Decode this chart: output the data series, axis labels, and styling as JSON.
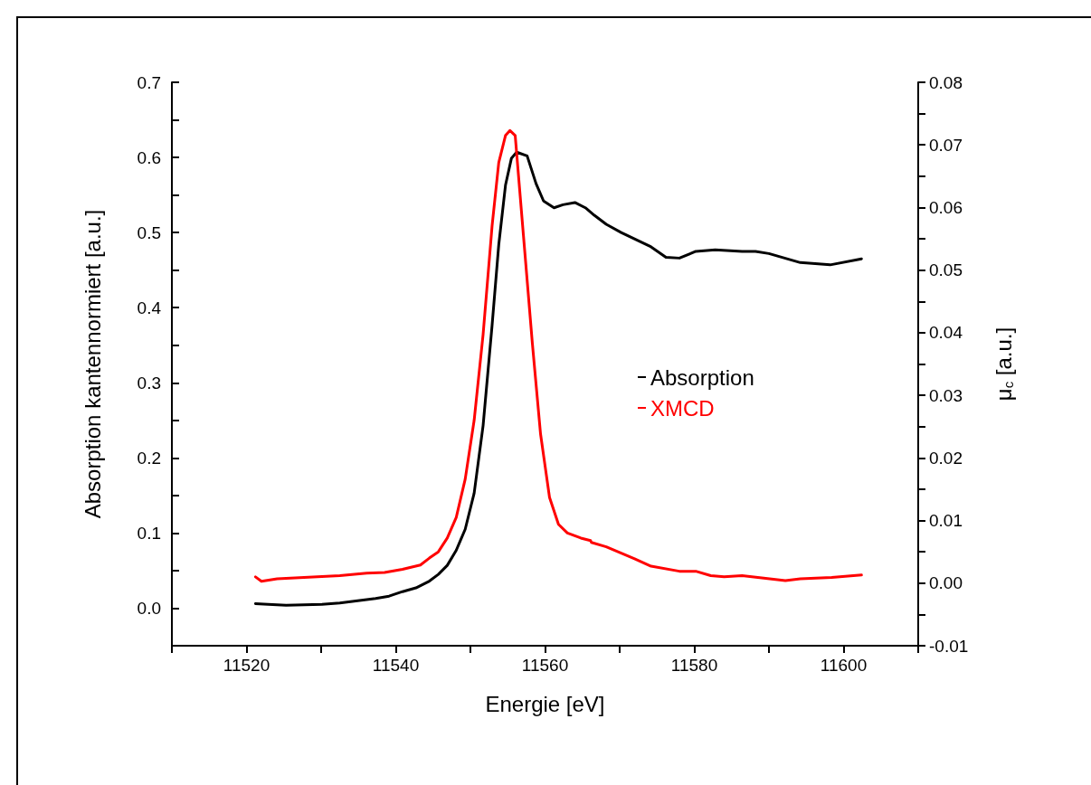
{
  "chart_data": {
    "type": "line",
    "xlabel": "Energie [eV]",
    "ylabel": "Absorption kantennormiert [a.u.]",
    "y2label": "μ$_{c}$ [a.u.]",
    "series": [
      {
        "name": "Absorption",
        "color": "#000000",
        "x": [
          11521.2,
          11522.9,
          11525.3,
          11530.1,
          11532.5,
          11534.9,
          11537.3,
          11539.1,
          11540.9,
          11542.7,
          11544.5,
          11545.7,
          11546.9,
          11548.1,
          11549.3,
          11550.5,
          11551.7,
          11552.9,
          11553.8,
          11554.7,
          11555.5,
          11556.2,
          11557.6,
          11558.8,
          11559.8,
          11561.2,
          11562.4,
          11564.0,
          11565.4,
          11566.6,
          11568.2,
          11570.2,
          11574.2,
          11576.2,
          11578.0,
          11580.2,
          11582.8,
          11586.4,
          11588.2,
          11590.0,
          11594.2,
          11598.2,
          11602.4
        ],
        "values": [
          0.006,
          0.005,
          0.004,
          0.005,
          0.007,
          0.01,
          0.013,
          0.016,
          0.022,
          0.027,
          0.036,
          0.045,
          0.057,
          0.077,
          0.105,
          0.153,
          0.243,
          0.376,
          0.484,
          0.563,
          0.599,
          0.607,
          0.602,
          0.565,
          0.542,
          0.533,
          0.537,
          0.54,
          0.533,
          0.523,
          0.511,
          0.5,
          0.481,
          0.467,
          0.466,
          0.475,
          0.477,
          0.475,
          0.475,
          0.472,
          0.46,
          0.457,
          0.465
        ]
      },
      {
        "name": "XMCD",
        "color": "#ff0000",
        "axis": "y2",
        "x": [
          11521.2,
          11522.0,
          11524.1,
          11527.7,
          11532.5,
          11536.1,
          11538.5,
          11540.9,
          11543.3,
          11544.5,
          11545.7,
          11546.9,
          11548.1,
          11549.3,
          11550.5,
          11551.7,
          11552.9,
          11553.8,
          11554.7,
          11555.3,
          11556.0,
          11557.1,
          11558.3,
          11559.4,
          11560.6,
          11561.8,
          11563.0,
          11564.8,
          11566.1,
          11566.2,
          11568.2,
          11572.0,
          11574.2,
          11578.0,
          11580.2,
          11582.2,
          11584.0,
          11586.4,
          11592.2,
          11594.2,
          11598.4,
          11602.4
        ],
        "values": [
          0.001,
          0.0003,
          0.0007,
          0.0009,
          0.0012,
          0.0016,
          0.0017,
          0.0022,
          0.0029,
          0.004,
          0.005,
          0.0072,
          0.0105,
          0.0166,
          0.026,
          0.0397,
          0.057,
          0.0672,
          0.0715,
          0.0723,
          0.0715,
          0.0556,
          0.0383,
          0.0238,
          0.0137,
          0.0094,
          0.008,
          0.0072,
          0.0068,
          0.0065,
          0.0058,
          0.0039,
          0.0027,
          0.0019,
          0.0019,
          0.0012,
          0.001,
          0.0012,
          0.0004,
          0.0007,
          0.0009,
          0.0013
        ]
      }
    ],
    "xlim": [
      11510,
      11610
    ],
    "xticks": [
      {
        "value": 11510,
        "label": null
      },
      11520,
      {
        "value": 11530,
        "label": null
      },
      11540,
      {
        "value": 11550,
        "label": null
      },
      11560,
      {
        "value": 11570,
        "label": null
      },
      11580,
      {
        "value": 11590,
        "label": null
      },
      11600,
      {
        "value": 11610,
        "label": null
      }
    ],
    "ylim": [
      -0.05,
      0.7
    ],
    "yticks": [
      {
        "value": -0.05,
        "label": null
      },
      {
        "value": 0,
        "label": "0.0"
      },
      {
        "value": 0.05,
        "label": null
      },
      0.1,
      {
        "value": 0.15,
        "label": null
      },
      0.2,
      {
        "value": 0.25,
        "label": null
      },
      0.3,
      {
        "value": 0.35,
        "label": null
      },
      0.4,
      {
        "value": 0.45,
        "label": null
      },
      0.5,
      {
        "value": 0.55,
        "label": null
      },
      0.6,
      {
        "value": 0.65,
        "label": null
      },
      0.7
    ],
    "y2lim": [
      -0.01,
      0.08
    ],
    "y2ticks": [
      {
        "value": -0.01,
        "label": "-0.01"
      },
      {
        "value": -0.005,
        "label": null
      },
      {
        "value": 0,
        "label": "0.00"
      },
      {
        "value": 0.005,
        "label": null
      },
      {
        "value": 0.01,
        "label": "0.01"
      },
      {
        "value": 0.015,
        "label": null
      },
      {
        "value": 0.02,
        "label": "0.02"
      },
      {
        "value": 0.025,
        "label": null
      },
      {
        "value": 0.03,
        "label": "0.03"
      },
      {
        "value": 0.035,
        "label": null
      },
      {
        "value": 0.04,
        "label": "0.04"
      },
      {
        "value": 0.045,
        "label": null
      },
      {
        "value": 0.05,
        "label": "0.05"
      },
      {
        "value": 0.055,
        "label": null
      },
      {
        "value": 0.06,
        "label": "0.06"
      },
      {
        "value": 0.065,
        "label": null
      },
      {
        "value": 0.07,
        "label": "0.07"
      },
      {
        "value": 0.075,
        "label": null
      },
      {
        "value": 0.08,
        "label": "0.08"
      }
    ],
    "grid": false,
    "legend": "right",
    "marker": "none",
    "line_style": "solid"
  }
}
